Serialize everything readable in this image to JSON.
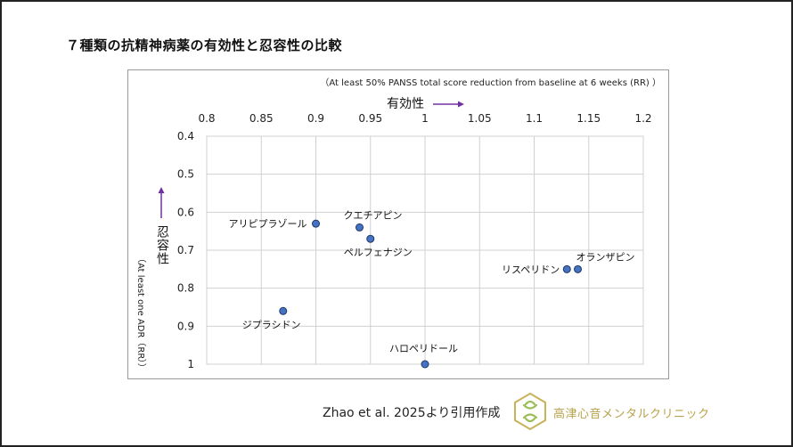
{
  "page": {
    "title": "７種類の抗精神病薬の有効性と忍容性の比較",
    "credit": "Zhao et al. 2025より引用作成",
    "clinic_name": "高津心音メンタルクリニック"
  },
  "chart_data": {
    "type": "scatter",
    "subtitle": "（At least 50% PANSS total score reduction from baseline at 6 weeks (RR) ）",
    "xlabel": "有効性",
    "ylabel": "忍容性",
    "ylabel_secondary": "（At least one ADR（RR））",
    "xlim": [
      0.8,
      1.2
    ],
    "ylim": [
      0.4,
      1.0
    ],
    "y_inverted": true,
    "x_axis_position": "top",
    "grid": true,
    "x_ticks": [
      "0.8",
      "0.85",
      "0.9",
      "0.95",
      "1",
      "1.05",
      "1.1",
      "1.15",
      "1.2"
    ],
    "y_ticks": [
      "0.4",
      "0.5",
      "0.6",
      "0.7",
      "0.8",
      "0.9",
      "1"
    ],
    "point_color": "#4472c4",
    "points": [
      {
        "label": "アリピプラゾール",
        "x": 0.9,
        "y": 0.63
      },
      {
        "label": "クエチアピン",
        "x": 0.94,
        "y": 0.64
      },
      {
        "label": "ペルフェナジン",
        "x": 0.95,
        "y": 0.67
      },
      {
        "label": "リスペリドン",
        "x": 1.13,
        "y": 0.75
      },
      {
        "label": "オランザピン",
        "x": 1.14,
        "y": 0.75
      },
      {
        "label": "ジプラシドン",
        "x": 0.87,
        "y": 0.86
      },
      {
        "label": "ハロペリドール",
        "x": 1.0,
        "y": 1.0
      }
    ]
  }
}
